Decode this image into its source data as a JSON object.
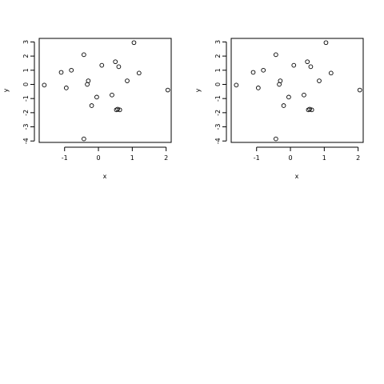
{
  "chart_data": [
    {
      "type": "scatter",
      "xlabel": "x",
      "ylabel": "y",
      "xlim": [
        -1.75,
        2.15
      ],
      "ylim": [
        -4.1,
        3.25
      ],
      "xticks": [
        -1,
        0,
        1,
        2
      ],
      "xtick_labels": [
        "-1",
        "0",
        "1",
        "2"
      ],
      "yticks": [
        -4,
        -3,
        -2,
        -1,
        0,
        1,
        2,
        3
      ],
      "ytick_labels": [
        "-4",
        "-3",
        "-2",
        "-1",
        "0",
        "1",
        "2",
        "3"
      ],
      "x": [
        -1.6,
        -1.1,
        -0.95,
        -0.8,
        -0.43,
        -0.33,
        -0.3,
        -0.2,
        -0.05,
        0.1,
        0.4,
        0.5,
        0.53,
        0.57,
        0.6,
        0.63,
        0.85,
        1.05,
        1.2,
        2.05,
        -0.43
      ],
      "y": [
        -0.05,
        0.85,
        -0.25,
        1.0,
        2.1,
        0.0,
        0.25,
        -1.5,
        -0.9,
        1.35,
        -0.75,
        1.6,
        -1.8,
        -1.75,
        1.25,
        -1.8,
        0.25,
        2.95,
        0.8,
        -0.4,
        -3.85
      ]
    },
    {
      "type": "scatter",
      "xlabel": "x",
      "ylabel": "y",
      "xlim": [
        -1.75,
        2.15
      ],
      "ylim": [
        -4.1,
        3.25
      ],
      "xticks": [
        -1,
        0,
        1,
        2
      ],
      "xtick_labels": [
        "-1",
        "0",
        "1",
        "2"
      ],
      "yticks": [
        -4,
        -3,
        -2,
        -1,
        0,
        1,
        2,
        3
      ],
      "ytick_labels": [
        "-4",
        "-3",
        "-2",
        "-1",
        "0",
        "1",
        "2",
        "3"
      ],
      "x": [
        -1.6,
        -1.1,
        -0.95,
        -0.8,
        -0.43,
        -0.33,
        -0.3,
        -0.2,
        -0.05,
        0.1,
        0.4,
        0.5,
        0.53,
        0.57,
        0.6,
        0.63,
        0.85,
        1.05,
        1.2,
        2.05,
        -0.43
      ],
      "y": [
        -0.05,
        0.85,
        -0.25,
        1.0,
        2.1,
        0.0,
        0.25,
        -1.5,
        -0.9,
        1.35,
        -0.75,
        1.6,
        -1.8,
        -1.75,
        1.25,
        -1.8,
        0.25,
        2.95,
        0.8,
        -0.4,
        -3.85
      ]
    }
  ]
}
